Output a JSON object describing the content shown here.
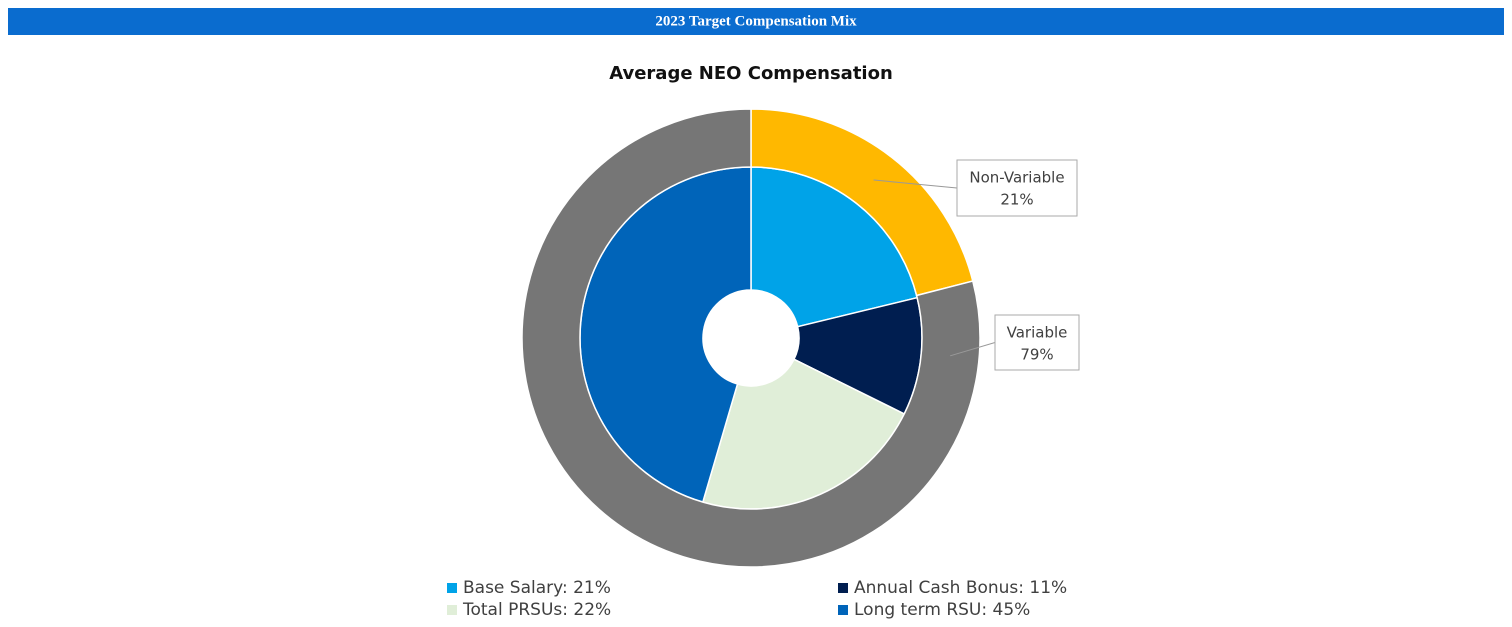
{
  "header": {
    "title": "2023 Target Compensation Mix"
  },
  "chart_data": {
    "type": "donut",
    "title": "Average NEO Compensation",
    "rings": [
      {
        "categories": [
          "Base Salary: 21%",
          "Annual Cash Bonus: 11%",
          "Total PRSUs: 22%",
          "Long term RSU: 45%"
        ],
        "values": [
          21,
          11,
          22,
          45
        ],
        "colors": [
          "#00a3e8",
          "#001e50",
          "#e0eed8",
          "#0064b9"
        ]
      },
      {
        "categories": [
          "Non-Variable",
          "Variable"
        ],
        "values": [
          21,
          79
        ],
        "value_labels": [
          "21%",
          "79%"
        ],
        "colors": [
          "#ffb800",
          "#767676"
        ]
      }
    ]
  }
}
